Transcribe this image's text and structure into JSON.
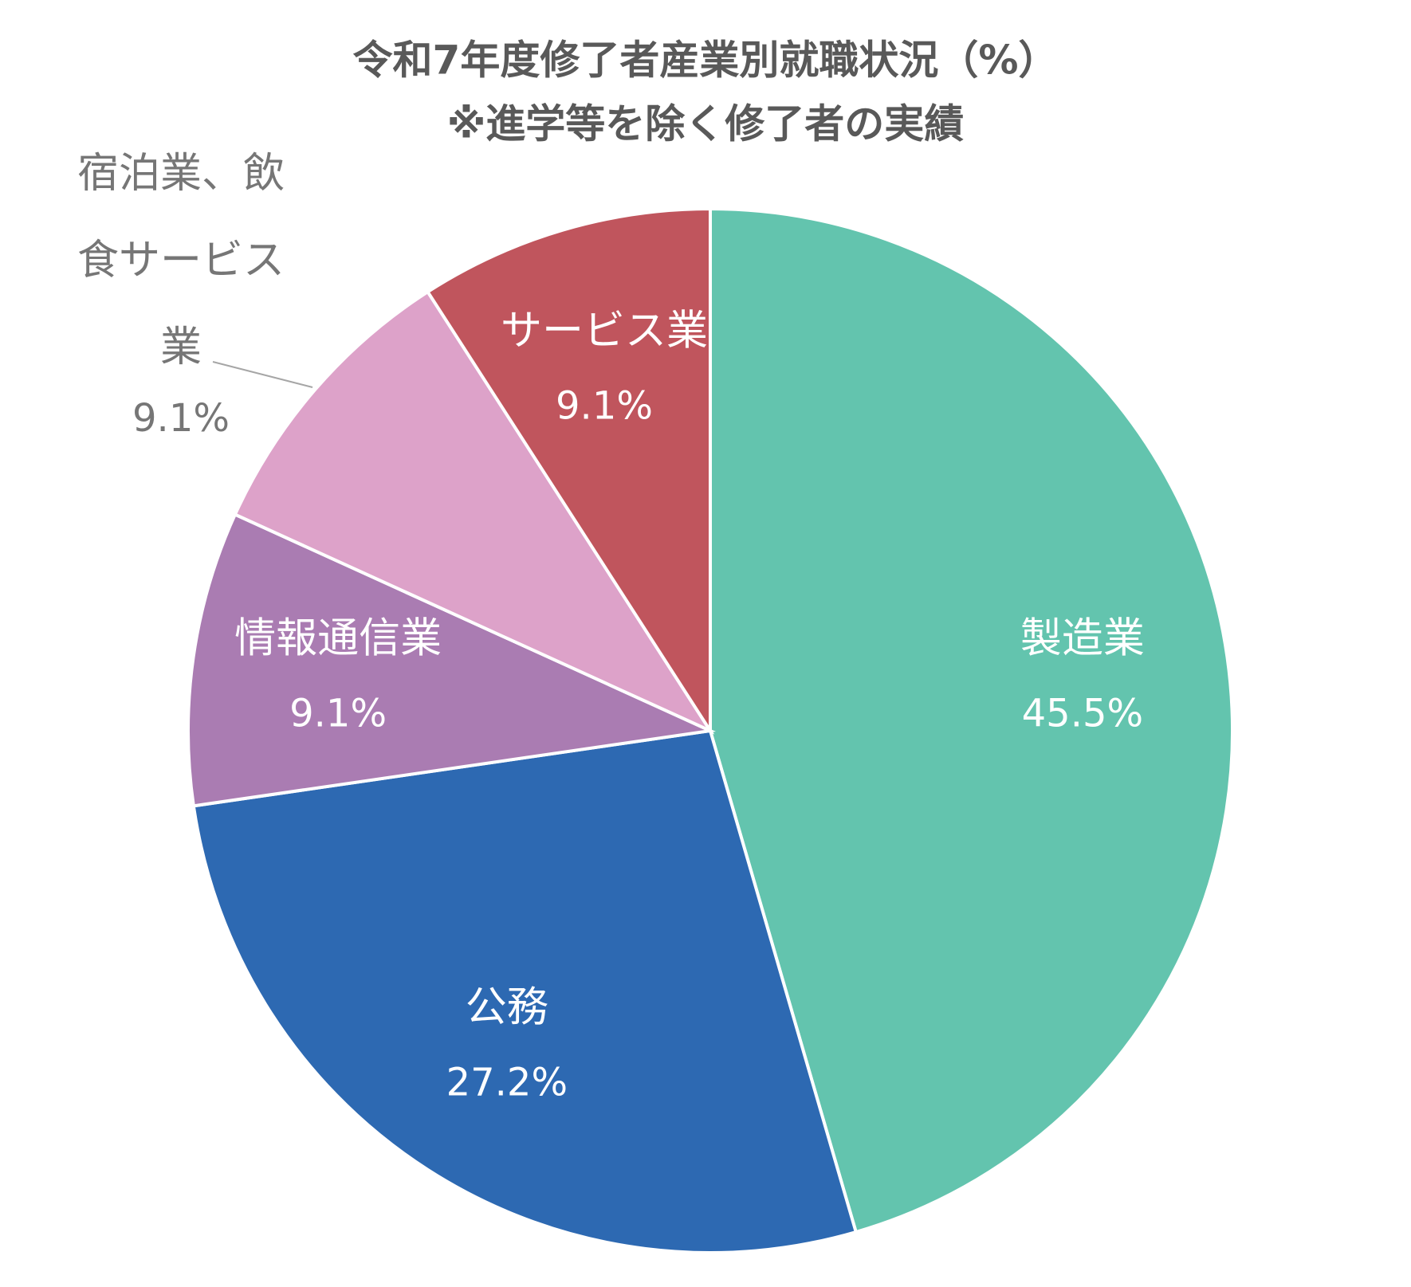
{
  "chart_data": {
    "type": "pie",
    "title": "令和7年度修了者産業別就職状況（%）",
    "subtitle": "※進学等を除く修了者の実績",
    "categories": [
      "製造業",
      "公務",
      "情報通信業",
      "宿泊業、飲食サービス業",
      "サービス業"
    ],
    "values": [
      45.5,
      27.2,
      9.1,
      9.1,
      9.1
    ],
    "value_labels": [
      "45.5%",
      "27.2%",
      "9.1%",
      "9.1%",
      "9.1%"
    ],
    "colors": [
      "#63c4ae",
      "#2d69b2",
      "#aa7cb2",
      "#dda2c9",
      "#c0555d"
    ]
  }
}
